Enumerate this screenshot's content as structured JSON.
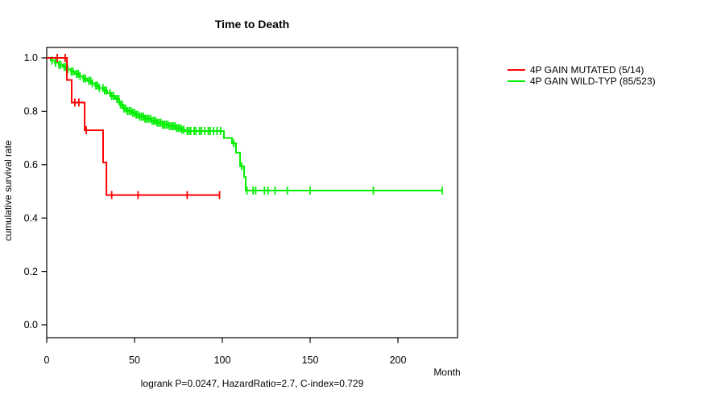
{
  "title": "Time to Death",
  "footer": "logrank P=0.0247, HazardRatio=2.7, C-index=0.729",
  "x_axis": {
    "label": "Month"
  },
  "y_axis": {
    "label": "cumulative survival rate"
  },
  "legend": [
    {
      "key": "mutated",
      "label": "4P GAIN MUTATED (5/14)",
      "color": "#ff0000"
    },
    {
      "key": "wildtype",
      "label": "4P GAIN WILD-TYP (85/523)",
      "color": "#00ee00"
    }
  ],
  "chart_data": {
    "type": "line",
    "subtype": "kaplan-meier-step",
    "title": "Time to Death",
    "xlabel": "Month",
    "ylabel": "cumulative survival rate",
    "xlim": [
      0,
      234
    ],
    "ylim": [
      0,
      1
    ],
    "x_ticks": [
      0,
      50,
      100,
      150,
      200
    ],
    "y_ticks": [
      1.0,
      0.8,
      0.6,
      0.4,
      0.2,
      0.0
    ],
    "grid": false,
    "legend_position": "right-outside",
    "series": [
      {
        "key": "wildtype",
        "name": "4P GAIN WILD-TYP (85/523)",
        "color": "#00ee00",
        "steps": [
          [
            0,
            1.0
          ],
          [
            2.3,
            0.99
          ],
          [
            4.6,
            0.982
          ],
          [
            6.9,
            0.974
          ],
          [
            9.2,
            0.966
          ],
          [
            11.5,
            0.957
          ],
          [
            13.8,
            0.949
          ],
          [
            16,
            0.94
          ],
          [
            18.3,
            0.931
          ],
          [
            20.6,
            0.923
          ],
          [
            23,
            0.914
          ],
          [
            25.2,
            0.905
          ],
          [
            27.5,
            0.896
          ],
          [
            29.8,
            0.887
          ],
          [
            32.1,
            0.878
          ],
          [
            34.4,
            0.868
          ],
          [
            36.7,
            0.858
          ],
          [
            39,
            0.846
          ],
          [
            41.3,
            0.825
          ],
          [
            43.6,
            0.81
          ],
          [
            45.9,
            0.801
          ],
          [
            48.2,
            0.794
          ],
          [
            50.5,
            0.787
          ],
          [
            52.8,
            0.78
          ],
          [
            56,
            0.772
          ],
          [
            59.2,
            0.764
          ],
          [
            62.4,
            0.757
          ],
          [
            66,
            0.75
          ],
          [
            69.7,
            0.744
          ],
          [
            73.4,
            0.737
          ],
          [
            76.6,
            0.731
          ],
          [
            78.9,
            0.726
          ],
          [
            100.9,
            0.7
          ],
          [
            105.5,
            0.68
          ],
          [
            107.8,
            0.645
          ],
          [
            110.1,
            0.594
          ],
          [
            112.4,
            0.554
          ],
          [
            113.3,
            0.503
          ]
        ],
        "end_month": 225.2,
        "censors": [
          3,
          5,
          7,
          8,
          10,
          11,
          12,
          14,
          15,
          17,
          18,
          19,
          21,
          22,
          24,
          25,
          26,
          28,
          29,
          30,
          32,
          33,
          34,
          36,
          37,
          38,
          40,
          41,
          42,
          43,
          44,
          45,
          46,
          47,
          48,
          49,
          50,
          51,
          52,
          53,
          54,
          55,
          56,
          57,
          58,
          59,
          60,
          61,
          62,
          63,
          64,
          65,
          66,
          67,
          68,
          69,
          70,
          71,
          72,
          73,
          74,
          75,
          76,
          77,
          78,
          80,
          81,
          82,
          84,
          85,
          87,
          88,
          90,
          92,
          93,
          95,
          97,
          99,
          106.5,
          111,
          114,
          117.5,
          119,
          124,
          126,
          130,
          137,
          150,
          186,
          225.2
        ]
      },
      {
        "key": "mutated",
        "name": "4P GAIN MUTATED (5/14)",
        "color": "#ff0000",
        "steps": [
          [
            0,
            1.0
          ],
          [
            11.5,
            0.917
          ],
          [
            14.2,
            0.833
          ],
          [
            21.6,
            0.729
          ],
          [
            32.1,
            0.608
          ],
          [
            34,
            0.486
          ]
        ],
        "end_month": 98.4,
        "censors": [
          6,
          10.5,
          16,
          18.3,
          22.5,
          37,
          52,
          80,
          98.4
        ]
      }
    ]
  }
}
